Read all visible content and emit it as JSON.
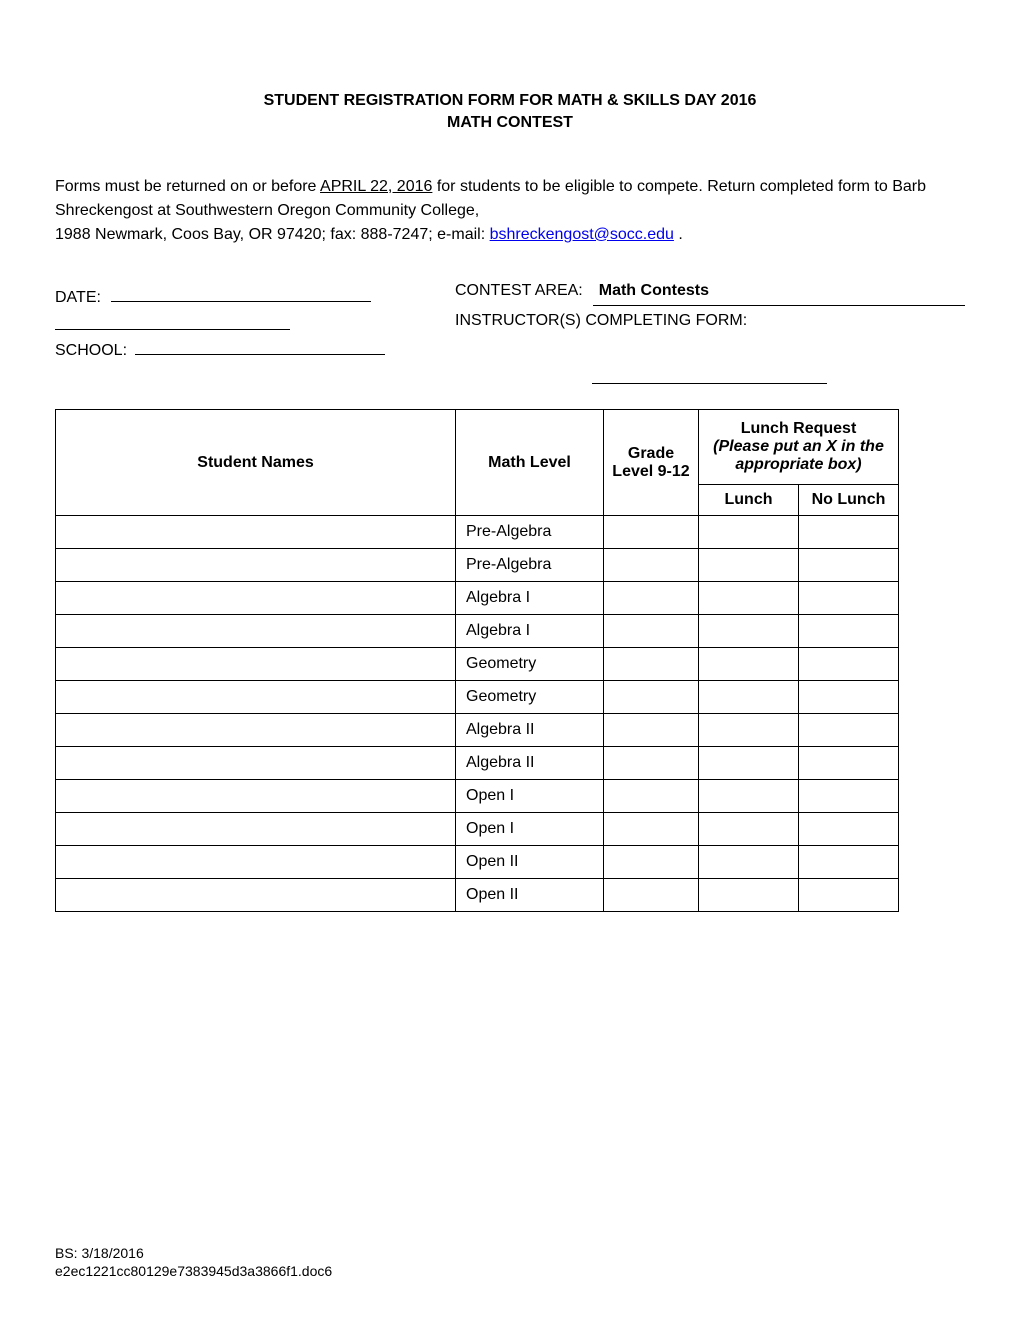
{
  "title": {
    "line1": "STUDENT REGISTRATION FORM FOR MATH & SKILLS DAY 2016",
    "line2": "MATH CONTEST"
  },
  "instructions": {
    "before_date": "Forms must be returned on or before ",
    "deadline": "APRIL 22, 2016",
    "after_date": " for students to be eligible to compete. Return completed form to Barb Shreckengost at Southwestern Oregon Community College,",
    "address_line": "1988 Newmark, Coos Bay, OR 97420; fax:  888-7247; e-mail:  ",
    "email": "bshreckengost@socc.edu",
    "period": " ."
  },
  "fields": {
    "date_label": "DATE:",
    "contest_area_label": "CONTEST AREA:",
    "contest_area_value": "Math Contests",
    "instructors_label": "INSTRUCTOR(S) COMPLETING FORM:",
    "school_label": "SCHOOL:"
  },
  "table": {
    "headers": {
      "student_names": "Student Names",
      "math_level": "Math Level",
      "grade_level": "Grade Level 9-12",
      "lunch_request_bold": "Lunch Request",
      "lunch_request_italic": "(Please put an X in the appropriate box)",
      "lunch": "Lunch",
      "no_lunch": "No Lunch"
    },
    "rows": [
      {
        "math": "Pre-Algebra"
      },
      {
        "math": "Pre-Algebra"
      },
      {
        "math": "Algebra I"
      },
      {
        "math": "Algebra I"
      },
      {
        "math": "Geometry"
      },
      {
        "math": "Geometry"
      },
      {
        "math": "Algebra II"
      },
      {
        "math": "Algebra II"
      },
      {
        "math": "Open I"
      },
      {
        "math": "Open I"
      },
      {
        "math": "Open II"
      },
      {
        "math": "Open II"
      }
    ]
  },
  "footer": {
    "line1": "BS:  3/18/2016",
    "line2": "e2ec1221cc80129e7383945d3a3866f1.doc6"
  }
}
